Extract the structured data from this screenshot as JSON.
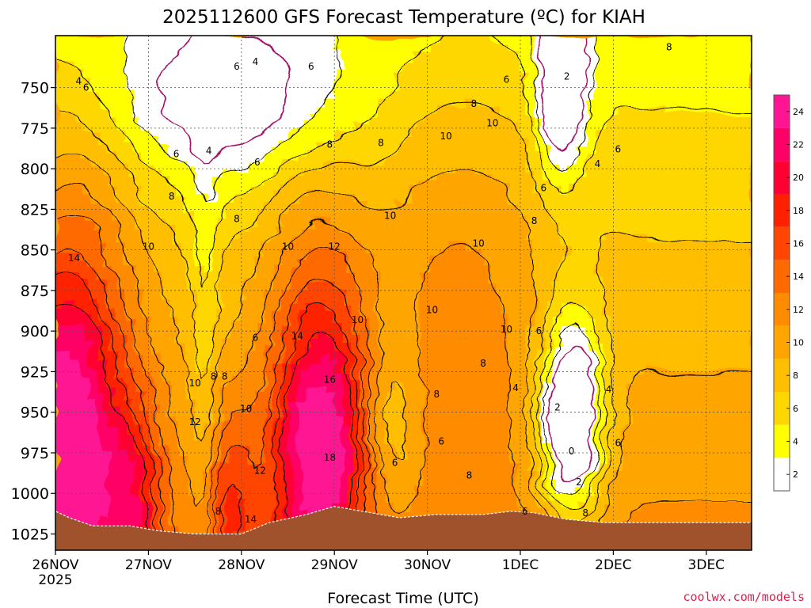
{
  "chart_data": {
    "type": "heatmap",
    "title": "2025112600 GFS Forecast Temperature (ºC) for KIAH",
    "xlabel": "Forecast Time (UTC)",
    "ylabel": "",
    "credit": "coolwx.com/models",
    "y_axis": {
      "type": "pressure (hPa)",
      "range": [
        1035,
        718
      ],
      "ticks": [
        750,
        775,
        800,
        825,
        850,
        875,
        900,
        925,
        950,
        975,
        1000,
        1025
      ]
    },
    "x_axis": {
      "ticks": [
        "26NOV",
        "27NOV",
        "28NOV",
        "29NOV",
        "30NOV",
        "1DEC",
        "2DEC",
        "3DEC"
      ],
      "first_tick_year": "2025"
    },
    "grid": true,
    "colorbar": {
      "position": "right",
      "levels": [
        2,
        4,
        6,
        8,
        10,
        12,
        14,
        16,
        18,
        20,
        22,
        24
      ],
      "colors": [
        "#ffffff",
        "#ffff00",
        "#ffd700",
        "#ffbf00",
        "#ffa500",
        "#ff8c00",
        "#ff6a00",
        "#ff4500",
        "#ff2000",
        "#ff0033",
        "#ff0066",
        "#ff1493"
      ]
    },
    "surface_color": "#a0522d",
    "contour_labels": [
      {
        "t": 0.25,
        "p": 746,
        "v": "4"
      },
      {
        "t": 0.33,
        "p": 750,
        "v": "6"
      },
      {
        "t": 1.3,
        "p": 791,
        "v": "6"
      },
      {
        "t": 1.65,
        "p": 789,
        "v": "4"
      },
      {
        "t": 1.25,
        "p": 817,
        "v": "8"
      },
      {
        "t": 1.0,
        "p": 848,
        "v": "10"
      },
      {
        "t": 0.2,
        "p": 855,
        "v": "14"
      },
      {
        "t": 2.15,
        "p": 734,
        "v": "4"
      },
      {
        "t": 1.95,
        "p": 737,
        "v": "6"
      },
      {
        "t": 2.75,
        "p": 737,
        "v": "6"
      },
      {
        "t": 2.17,
        "p": 796,
        "v": "6"
      },
      {
        "t": 2.95,
        "p": 785,
        "v": "8"
      },
      {
        "t": 3.5,
        "p": 784,
        "v": "8"
      },
      {
        "t": 3.6,
        "p": 829,
        "v": "10"
      },
      {
        "t": 3.0,
        "p": 848,
        "v": "12"
      },
      {
        "t": 2.5,
        "p": 848,
        "v": "10"
      },
      {
        "t": 1.95,
        "p": 831,
        "v": "8"
      },
      {
        "t": 2.15,
        "p": 904,
        "v": "6"
      },
      {
        "t": 1.7,
        "p": 928,
        "v": "8"
      },
      {
        "t": 1.82,
        "p": 928,
        "v": "8"
      },
      {
        "t": 1.5,
        "p": 932,
        "v": "10"
      },
      {
        "t": 1.5,
        "p": 956,
        "v": "12"
      },
      {
        "t": 2.05,
        "p": 948,
        "v": "10"
      },
      {
        "t": 2.6,
        "p": 903,
        "v": "14"
      },
      {
        "t": 2.95,
        "p": 930,
        "v": "16"
      },
      {
        "t": 2.95,
        "p": 978,
        "v": "18"
      },
      {
        "t": 2.2,
        "p": 986,
        "v": "12"
      },
      {
        "t": 2.1,
        "p": 1016,
        "v": "14"
      },
      {
        "t": 1.75,
        "p": 1011,
        "v": "8"
      },
      {
        "t": 3.25,
        "p": 893,
        "v": "10"
      },
      {
        "t": 3.65,
        "p": 981,
        "v": "6"
      },
      {
        "t": 4.05,
        "p": 887,
        "v": "10"
      },
      {
        "t": 4.1,
        "p": 939,
        "v": "8"
      },
      {
        "t": 4.2,
        "p": 780,
        "v": "10"
      },
      {
        "t": 4.15,
        "p": 968,
        "v": "6"
      },
      {
        "t": 4.45,
        "p": 989,
        "v": "8"
      },
      {
        "t": 4.5,
        "p": 760,
        "v": "8"
      },
      {
        "t": 4.55,
        "p": 846,
        "v": "10"
      },
      {
        "t": 4.6,
        "p": 920,
        "v": "8"
      },
      {
        "t": 4.85,
        "p": 745,
        "v": "6"
      },
      {
        "t": 4.7,
        "p": 772,
        "v": "10"
      },
      {
        "t": 4.85,
        "p": 899,
        "v": "10"
      },
      {
        "t": 4.95,
        "p": 935,
        "v": "4"
      },
      {
        "t": 5.25,
        "p": 812,
        "v": "6"
      },
      {
        "t": 5.15,
        "p": 832,
        "v": "8"
      },
      {
        "t": 5.2,
        "p": 900,
        "v": "6"
      },
      {
        "t": 5.5,
        "p": 743,
        "v": "2"
      },
      {
        "t": 5.4,
        "p": 947,
        "v": "2"
      },
      {
        "t": 5.05,
        "p": 1011,
        "v": "6"
      },
      {
        "t": 5.63,
        "p": 993,
        "v": "2"
      },
      {
        "t": 5.55,
        "p": 974,
        "v": "0"
      },
      {
        "t": 5.7,
        "p": 1012,
        "v": "8"
      },
      {
        "t": 5.83,
        "p": 797,
        "v": "4"
      },
      {
        "t": 6.05,
        "p": 788,
        "v": "6"
      },
      {
        "t": 5.95,
        "p": 936,
        "v": "4"
      },
      {
        "t": 6.05,
        "p": 969,
        "v": "6"
      },
      {
        "t": 6.6,
        "p": 725,
        "v": "8"
      }
    ]
  }
}
